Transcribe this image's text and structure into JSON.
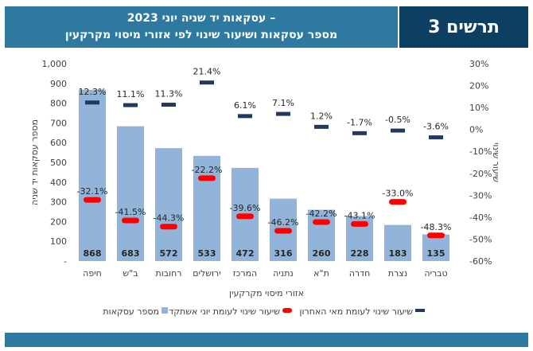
{
  "header": {
    "title_line1": "עסקאות יד שניה יוני 2023 –",
    "title_line2": "מספר עסקאות ושיעור שינוי לפי אזורי מיסוי מקרקעין",
    "badge": "תרשים 3"
  },
  "colors": {
    "title_band": "#2e79a0",
    "badge_band": "#0d3f63",
    "bar": "#93b4d9",
    "yearly_marker": "#ff0000",
    "monthly_marker": "#1f3864"
  },
  "chart_data": {
    "type": "bar",
    "title": "עסקאות יד שניה יוני 2023 – מספר עסקאות ושיעור שינוי לפי אזורי מיסוי מקרקעין",
    "categories": [
      "חיפה",
      "ב\"ש",
      "רחובות",
      "ירושלים",
      "המרכז",
      "נתניה",
      "ת\"א",
      "חדרה",
      "נצרת",
      "טבריה"
    ],
    "series": [
      {
        "name": "מספר עסקאות",
        "axis": "left",
        "kind": "bar",
        "values": [
          868,
          683,
          572,
          533,
          472,
          316,
          260,
          228,
          183,
          135
        ],
        "labels": [
          "868",
          "683",
          "572",
          "533",
          "472",
          "316",
          "260",
          "228",
          "183",
          "135"
        ]
      },
      {
        "name": "שיעור שינוי לעומת יוני אשתקד",
        "axis": "right",
        "kind": "marker",
        "values": [
          -32.1,
          -41.5,
          -44.3,
          -22.2,
          -39.6,
          -46.2,
          -42.2,
          -43.1,
          -33.0,
          -48.3
        ],
        "labels": [
          "-32.1%",
          "-41.5%",
          "-44.3%",
          "-22.2%",
          "-39.6%",
          "-46.2%",
          "-42.2%",
          "-43.1%",
          "-33.0%",
          "-48.3%"
        ]
      },
      {
        "name": "שיעור שינוי לעומת מאי האחרון",
        "axis": "right",
        "kind": "marker",
        "values": [
          12.3,
          11.1,
          11.3,
          21.4,
          6.1,
          7.1,
          1.2,
          -1.7,
          -0.5,
          -3.6
        ],
        "labels": [
          "12.3%",
          "11.1%",
          "11.3%",
          "21.4%",
          "6.1%",
          "7.1%",
          "1.2%",
          "-1.7%",
          "-0.5%",
          "-3.6%"
        ]
      }
    ],
    "xlabel": "אזורי מיסוי מקרקעין",
    "ylabel": "מספר עסקאות יד שניה",
    "y2label": "שיעור שינוי",
    "ylim": [
      0,
      1000
    ],
    "y2lim": [
      -60,
      30
    ],
    "yticks": [
      "-",
      "100",
      "200",
      "300",
      "400",
      "500",
      "600",
      "700",
      "800",
      "900",
      "1,000"
    ],
    "y2ticks": [
      "-60%",
      "-50%",
      "-40%",
      "-30%",
      "-20%",
      "-10%",
      "0%",
      "10%",
      "20%",
      "30%"
    ],
    "legend": [
      {
        "label": "שיעור שינוי לעומת מאי האחרון"
      },
      {
        "label": "שיעור שינוי לעומת יוני אשתקד"
      },
      {
        "label": "מספר עסקאות"
      }
    ],
    "legend_position": "bottom",
    "grid": false
  }
}
